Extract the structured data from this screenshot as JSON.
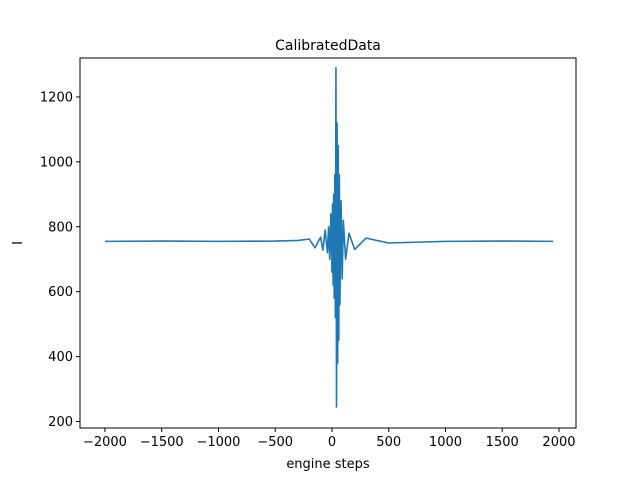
{
  "chart_data": {
    "type": "line",
    "title": "CalibratedData",
    "xlabel": "engine steps",
    "ylabel": "I",
    "xlim": [
      -2220,
      2150
    ],
    "ylim": [
      180,
      1320
    ],
    "xticks": [
      -2000,
      -1500,
      -1000,
      -500,
      0,
      500,
      1000,
      1500,
      2000
    ],
    "yticks": [
      200,
      400,
      600,
      800,
      1000,
      1200
    ],
    "grid": false,
    "legend": "none",
    "series_color": "#1f77b4",
    "series": [
      {
        "x": [
          -2000,
          -1500,
          -1000,
          -500,
          -300,
          -200,
          -150,
          -100,
          -80,
          -60,
          -40,
          -30,
          -20,
          -10,
          0,
          5,
          10,
          15,
          20,
          25,
          30,
          35,
          40,
          45,
          50,
          55,
          60,
          65,
          70,
          80,
          90,
          100,
          120,
          150,
          200,
          300,
          500,
          1000,
          1500,
          1950
        ],
        "values": [
          755,
          756,
          755,
          756,
          758,
          762,
          735,
          768,
          728,
          790,
          720,
          800,
          700,
          840,
          660,
          870,
          620,
          900,
          580,
          960,
          520,
          1290,
          245,
          1120,
          380,
          1050,
          450,
          960,
          560,
          880,
          640,
          820,
          700,
          780,
          730,
          765,
          750,
          755,
          756,
          755
        ]
      }
    ]
  }
}
